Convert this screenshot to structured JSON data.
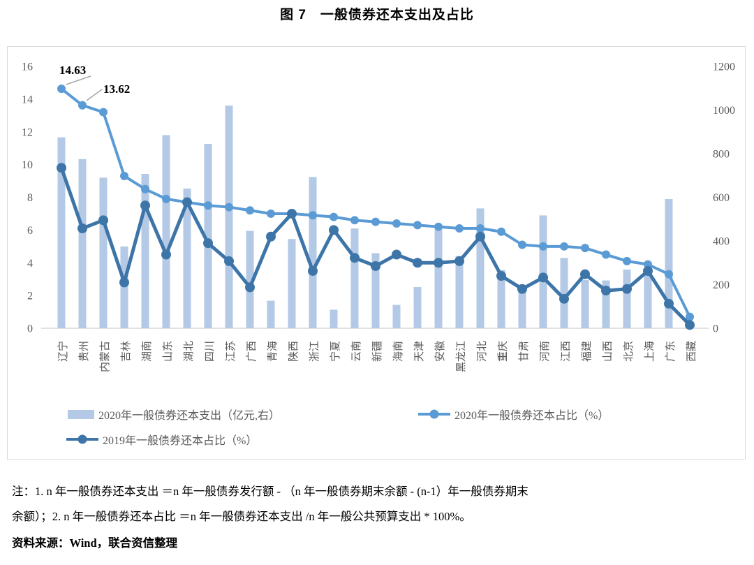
{
  "title": "图 7　一般债券还本支出及占比",
  "chart_data": {
    "type": "bar+line combo",
    "categories": [
      "辽宁",
      "贵州",
      "内蒙古",
      "吉林",
      "湖南",
      "山东",
      "湖北",
      "四川",
      "江苏",
      "广西",
      "青海",
      "陕西",
      "浙江",
      "宁夏",
      "云南",
      "新疆",
      "海南",
      "天津",
      "安徽",
      "黑龙江",
      "河北",
      "重庆",
      "甘肃",
      "河南",
      "江西",
      "福建",
      "山西",
      "北京",
      "上海",
      "广东",
      "西藏"
    ],
    "series": [
      {
        "name": "2020年一般债券还本支出（亿元,右）",
        "type": "bar",
        "axis": "right",
        "color": "#b3c9e6",
        "values": [
          875,
          775,
          690,
          375,
          707,
          885,
          640,
          845,
          1020,
          446,
          126,
          409,
          693,
          85,
          457,
          344,
          107,
          189,
          452,
          331,
          549,
          267,
          165,
          517,
          322,
          221,
          219,
          269,
          269,
          592,
          11
        ]
      },
      {
        "name": "2020年一般债券还本占比（%）",
        "type": "line",
        "axis": "left",
        "color": "#5b9bd5",
        "values": [
          14.63,
          13.62,
          13.2,
          9.3,
          8.5,
          7.9,
          7.7,
          7.5,
          7.4,
          7.2,
          7.0,
          7.0,
          6.9,
          6.8,
          6.6,
          6.5,
          6.4,
          6.3,
          6.2,
          6.1,
          6.1,
          5.9,
          5.1,
          5.0,
          5.0,
          4.9,
          4.5,
          4.1,
          3.9,
          3.3,
          0.7
        ]
      },
      {
        "name": "2019年一般债券还本占比（%）",
        "type": "line",
        "axis": "left",
        "color": "#3e75a8",
        "values": [
          9.8,
          6.1,
          6.6,
          2.8,
          7.5,
          4.5,
          7.7,
          5.2,
          4.1,
          2.5,
          5.6,
          7.0,
          3.5,
          6.0,
          4.3,
          3.8,
          4.5,
          4.0,
          4.0,
          4.1,
          5.6,
          3.2,
          2.4,
          3.1,
          1.8,
          3.3,
          2.3,
          2.4,
          3.5,
          1.5,
          0.2
        ]
      }
    ],
    "left_axis": {
      "min": 0,
      "max": 16,
      "step": 2
    },
    "right_axis": {
      "min": 0,
      "max": 1200,
      "step": 200
    },
    "annotations": [
      {
        "text": "14.63",
        "series": 1,
        "index": 0
      },
      {
        "text": "13.62",
        "series": 1,
        "index": 1
      }
    ],
    "legend_position": "bottom",
    "grid": "off"
  },
  "notes": {
    "line1": "注：1. n 年一般债券还本支出 ＝n 年一般债券发行额 - （n 年一般债券期末余额 - (n-1）年一般债券期末",
    "line2": "余额）；2. n 年一般债券还本占比 ＝n 年一般债券还本支出 /n 年一般公共预算支出 * 100%。"
  },
  "source": "资料来源：Wind，联合资信整理"
}
